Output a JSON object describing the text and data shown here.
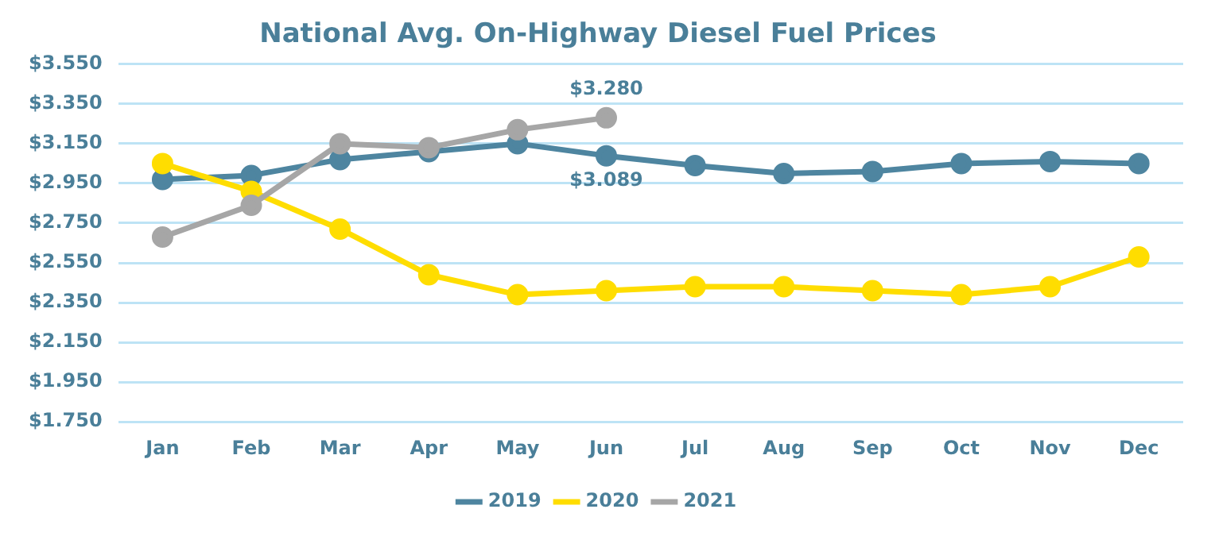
{
  "chart_data": {
    "type": "line",
    "title": "National Avg. On-Highway Diesel Fuel Prices",
    "categories": [
      "Jan",
      "Feb",
      "Mar",
      "Apr",
      "May",
      "Jun",
      "Jul",
      "Aug",
      "Sep",
      "Oct",
      "Nov",
      "Dec"
    ],
    "series": [
      {
        "name": "2019",
        "color": "#4e85a0",
        "values": [
          2.97,
          2.99,
          3.07,
          3.11,
          3.15,
          3.089,
          3.04,
          3.0,
          3.01,
          3.05,
          3.06,
          3.05
        ],
        "value_labels": [
          null,
          null,
          null,
          null,
          null,
          "$3.089",
          null,
          null,
          null,
          null,
          null,
          null
        ]
      },
      {
        "name": "2020",
        "color": "#ffdd00",
        "values": [
          3.05,
          2.91,
          2.72,
          2.49,
          2.39,
          2.41,
          2.43,
          2.43,
          2.41,
          2.39,
          2.43,
          2.58
        ]
      },
      {
        "name": "2021",
        "color": "#a6a6a6",
        "values": [
          2.68,
          2.84,
          3.15,
          3.13,
          3.22,
          3.28,
          null,
          null,
          null,
          null,
          null,
          null
        ],
        "value_labels": [
          null,
          null,
          null,
          null,
          null,
          "$3.280",
          null,
          null,
          null,
          null,
          null,
          null
        ]
      }
    ],
    "ylim": [
      1.75,
      3.55
    ],
    "yticks": [
      {
        "value": 1.75,
        "label": "$1.750"
      },
      {
        "value": 1.95,
        "label": "$1.950"
      },
      {
        "value": 2.15,
        "label": "$2.150"
      },
      {
        "value": 2.35,
        "label": "$2.350"
      },
      {
        "value": 2.55,
        "label": "$2.550"
      },
      {
        "value": 2.75,
        "label": "$2.750"
      },
      {
        "value": 2.95,
        "label": "$2.950"
      },
      {
        "value": 3.15,
        "label": "$3.150"
      },
      {
        "value": 3.35,
        "label": "$3.350"
      },
      {
        "value": 3.55,
        "label": "$3.550"
      }
    ],
    "grid": "y",
    "legend": "bottom",
    "marker": "circle",
    "line_style": "solid"
  }
}
